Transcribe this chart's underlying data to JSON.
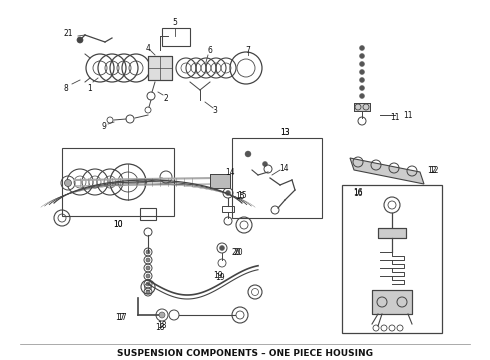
{
  "title": "SUSPENSION COMPONENTS – ONE PIECE HOUSING",
  "title_fontsize": 6.5,
  "title_fontweight": "bold",
  "background_color": "#ffffff",
  "fig_width": 4.9,
  "fig_height": 3.6,
  "dpi": 100,
  "line_color": "#444444",
  "text_color": "#111111",
  "gray_fill": "#aaaaaa",
  "dark_fill": "#555555"
}
